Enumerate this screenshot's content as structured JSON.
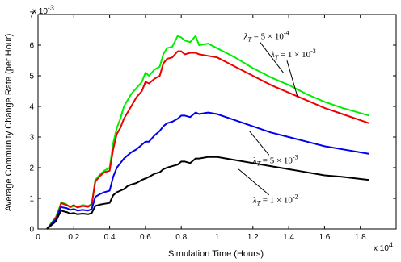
{
  "chart_data": {
    "type": "line",
    "xlabel": "Simulation Time (Hours)",
    "ylabel": "Average Community Change Rate (per Hour)",
    "x_multiplier": "x 10",
    "x_multiplier_exp": "4",
    "y_multiplier": "x 10",
    "y_multiplier_exp": "-3",
    "xlim": [
      0,
      2
    ],
    "ylim": [
      0,
      7
    ],
    "grid": false,
    "legend": "none",
    "x_ticks": [
      0,
      0.2,
      0.4,
      0.6,
      0.8,
      1,
      1.2,
      1.4,
      1.6,
      1.8
    ],
    "x_tick_labels": [
      "0",
      "0.2",
      "0.4",
      "0.6",
      "0.8",
      "1",
      "1.2",
      "1.4",
      "1.6",
      "1.8"
    ],
    "y_ticks": [
      0,
      1,
      2,
      3,
      4,
      5,
      6,
      7
    ],
    "y_tick_labels": [
      "0",
      "1",
      "2",
      "3",
      "4",
      "5",
      "6",
      "7"
    ],
    "series": [
      {
        "color": "#00ee00",
        "x": [
          0.05,
          0.1,
          0.12,
          0.13,
          0.14,
          0.16,
          0.18,
          0.2,
          0.22,
          0.25,
          0.28,
          0.3,
          0.32,
          0.35,
          0.37,
          0.4,
          0.42,
          0.44,
          0.46,
          0.48,
          0.5,
          0.52,
          0.55,
          0.58,
          0.6,
          0.62,
          0.65,
          0.68,
          0.7,
          0.72,
          0.75,
          0.78,
          0.8,
          0.82,
          0.85,
          0.88,
          0.9,
          0.95,
          1.0,
          1.05,
          1.1,
          1.2,
          1.3,
          1.4,
          1.5,
          1.6,
          1.7,
          1.85
        ],
        "y": [
          0.0,
          0.4,
          0.7,
          0.88,
          0.85,
          0.8,
          0.7,
          0.75,
          0.72,
          0.78,
          0.75,
          0.82,
          1.6,
          1.8,
          1.9,
          2.0,
          2.8,
          3.3,
          3.6,
          4.0,
          4.2,
          4.4,
          4.6,
          4.8,
          5.1,
          5.0,
          5.2,
          5.3,
          5.7,
          5.9,
          5.95,
          6.3,
          6.25,
          6.15,
          6.1,
          6.3,
          6.0,
          6.05,
          5.9,
          5.75,
          5.6,
          5.25,
          4.95,
          4.7,
          4.4,
          4.15,
          3.95,
          3.7
        ]
      },
      {
        "color": "#ee0000",
        "x": [
          0.05,
          0.1,
          0.12,
          0.13,
          0.14,
          0.16,
          0.18,
          0.2,
          0.22,
          0.25,
          0.28,
          0.3,
          0.32,
          0.35,
          0.37,
          0.4,
          0.42,
          0.44,
          0.46,
          0.48,
          0.5,
          0.52,
          0.55,
          0.58,
          0.6,
          0.62,
          0.65,
          0.68,
          0.7,
          0.72,
          0.75,
          0.78,
          0.8,
          0.82,
          0.85,
          0.88,
          0.9,
          0.95,
          1.0,
          1.05,
          1.1,
          1.2,
          1.3,
          1.4,
          1.5,
          1.6,
          1.7,
          1.85
        ],
        "y": [
          0.0,
          0.35,
          0.65,
          0.85,
          0.82,
          0.78,
          0.72,
          0.78,
          0.7,
          0.75,
          0.72,
          0.8,
          1.55,
          1.75,
          1.85,
          1.9,
          2.6,
          3.1,
          3.3,
          3.6,
          3.8,
          4.0,
          4.3,
          4.5,
          4.8,
          4.75,
          4.9,
          5.0,
          5.4,
          5.55,
          5.6,
          5.8,
          5.8,
          5.7,
          5.75,
          5.75,
          5.7,
          5.65,
          5.6,
          5.45,
          5.3,
          5.0,
          4.7,
          4.45,
          4.2,
          3.95,
          3.75,
          3.45
        ]
      },
      {
        "color": "#0000ee",
        "x": [
          0.05,
          0.1,
          0.12,
          0.13,
          0.14,
          0.16,
          0.18,
          0.2,
          0.22,
          0.25,
          0.28,
          0.3,
          0.32,
          0.35,
          0.37,
          0.4,
          0.42,
          0.44,
          0.46,
          0.48,
          0.5,
          0.52,
          0.55,
          0.58,
          0.6,
          0.62,
          0.65,
          0.68,
          0.7,
          0.72,
          0.75,
          0.78,
          0.8,
          0.82,
          0.85,
          0.88,
          0.9,
          0.95,
          1.0,
          1.05,
          1.1,
          1.2,
          1.3,
          1.4,
          1.5,
          1.6,
          1.7,
          1.85
        ],
        "y": [
          0.0,
          0.3,
          0.6,
          0.72,
          0.7,
          0.68,
          0.62,
          0.65,
          0.6,
          0.62,
          0.6,
          0.65,
          1.05,
          1.15,
          1.2,
          1.25,
          1.7,
          2.0,
          2.15,
          2.3,
          2.4,
          2.5,
          2.6,
          2.75,
          2.85,
          2.85,
          3.05,
          3.2,
          3.35,
          3.45,
          3.5,
          3.6,
          3.7,
          3.7,
          3.65,
          3.8,
          3.75,
          3.8,
          3.75,
          3.65,
          3.55,
          3.35,
          3.15,
          3.0,
          2.85,
          2.7,
          2.6,
          2.45
        ]
      },
      {
        "color": "#000000",
        "x": [
          0.05,
          0.1,
          0.12,
          0.13,
          0.14,
          0.16,
          0.18,
          0.2,
          0.22,
          0.25,
          0.28,
          0.3,
          0.32,
          0.35,
          0.37,
          0.4,
          0.42,
          0.44,
          0.46,
          0.48,
          0.5,
          0.52,
          0.55,
          0.58,
          0.6,
          0.62,
          0.65,
          0.68,
          0.7,
          0.72,
          0.75,
          0.78,
          0.8,
          0.82,
          0.85,
          0.88,
          0.9,
          0.95,
          1.0,
          1.05,
          1.1,
          1.2,
          1.3,
          1.4,
          1.5,
          1.6,
          1.7,
          1.85
        ],
        "y": [
          0.0,
          0.25,
          0.5,
          0.6,
          0.58,
          0.55,
          0.5,
          0.52,
          0.48,
          0.5,
          0.48,
          0.52,
          0.75,
          0.8,
          0.82,
          0.85,
          1.1,
          1.2,
          1.25,
          1.3,
          1.4,
          1.45,
          1.5,
          1.6,
          1.65,
          1.7,
          1.8,
          1.85,
          1.95,
          2.0,
          2.05,
          2.1,
          2.2,
          2.2,
          2.15,
          2.3,
          2.3,
          2.35,
          2.35,
          2.3,
          2.25,
          2.15,
          2.05,
          1.95,
          1.85,
          1.75,
          1.7,
          1.6
        ]
      }
    ],
    "annotations": [
      {
        "coef": "5",
        "exp": "-4",
        "x": 1.15,
        "y": 6.2,
        "tip_x": 1.37,
        "tip_y": 5.1
      },
      {
        "coef": "1",
        "exp": "-3",
        "x": 1.3,
        "y": 5.6,
        "tip_x": 1.45,
        "tip_y": 4.3
      },
      {
        "coef": "5",
        "exp": "-3",
        "x": 1.2,
        "y": 2.15,
        "tip_x": 1.18,
        "tip_y": 3.2
      },
      {
        "coef": "1",
        "exp": "-2",
        "x": 1.2,
        "y": 0.85,
        "tip_x": 1.12,
        "tip_y": 1.95
      }
    ]
  }
}
